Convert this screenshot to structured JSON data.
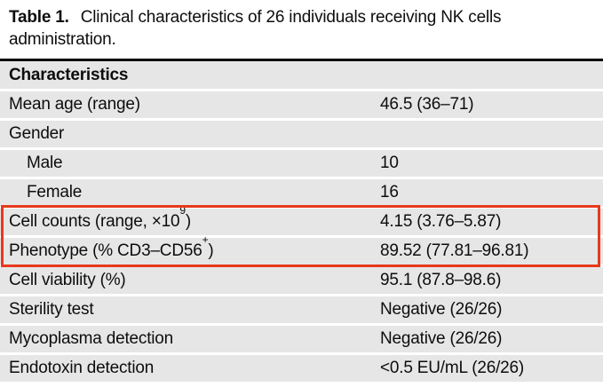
{
  "caption": {
    "table_number": "Table 1.",
    "text": "Clinical characteristics of 26 individuals receiving NK cells administration."
  },
  "table": {
    "header": "Characteristics",
    "row_bg_color": "#e6e6e6",
    "top_rule_color": "#000000",
    "highlight_color": "#e8391d",
    "rows": [
      {
        "label": "Mean age (range)",
        "sup": "",
        "label_end": "",
        "value": "46.5 (36–71)",
        "indent": false,
        "highlighted": false
      },
      {
        "label": "Gender",
        "sup": "",
        "label_end": "",
        "value": "",
        "indent": false,
        "highlighted": false
      },
      {
        "label": "Male",
        "sup": "",
        "label_end": "",
        "value": "10",
        "indent": true,
        "highlighted": false
      },
      {
        "label": "Female",
        "sup": "",
        "label_end": "",
        "value": "16",
        "indent": true,
        "highlighted": false
      },
      {
        "label": "Cell counts (range, ×10",
        "sup": "9",
        "label_end": ")",
        "value": "4.15 (3.76–5.87)",
        "indent": false,
        "highlighted": true
      },
      {
        "label": "Phenotype (% CD3–CD56",
        "sup": "+",
        "label_end": ")",
        "value": "89.52 (77.81–96.81)",
        "indent": false,
        "highlighted": true
      },
      {
        "label": "Cell viability (%)",
        "sup": "",
        "label_end": "",
        "value": "95.1 (87.8–98.6)",
        "indent": false,
        "highlighted": false
      },
      {
        "label": "Sterility test",
        "sup": "",
        "label_end": "",
        "value": "Negative (26/26)",
        "indent": false,
        "highlighted": false
      },
      {
        "label": "Mycoplasma detection",
        "sup": "",
        "label_end": "",
        "value": "Negative (26/26)",
        "indent": false,
        "highlighted": false
      },
      {
        "label": "Endotoxin detection",
        "sup": "",
        "label_end": "",
        "value": "<0.5 EU/mL (26/26)",
        "indent": false,
        "highlighted": false
      }
    ]
  }
}
